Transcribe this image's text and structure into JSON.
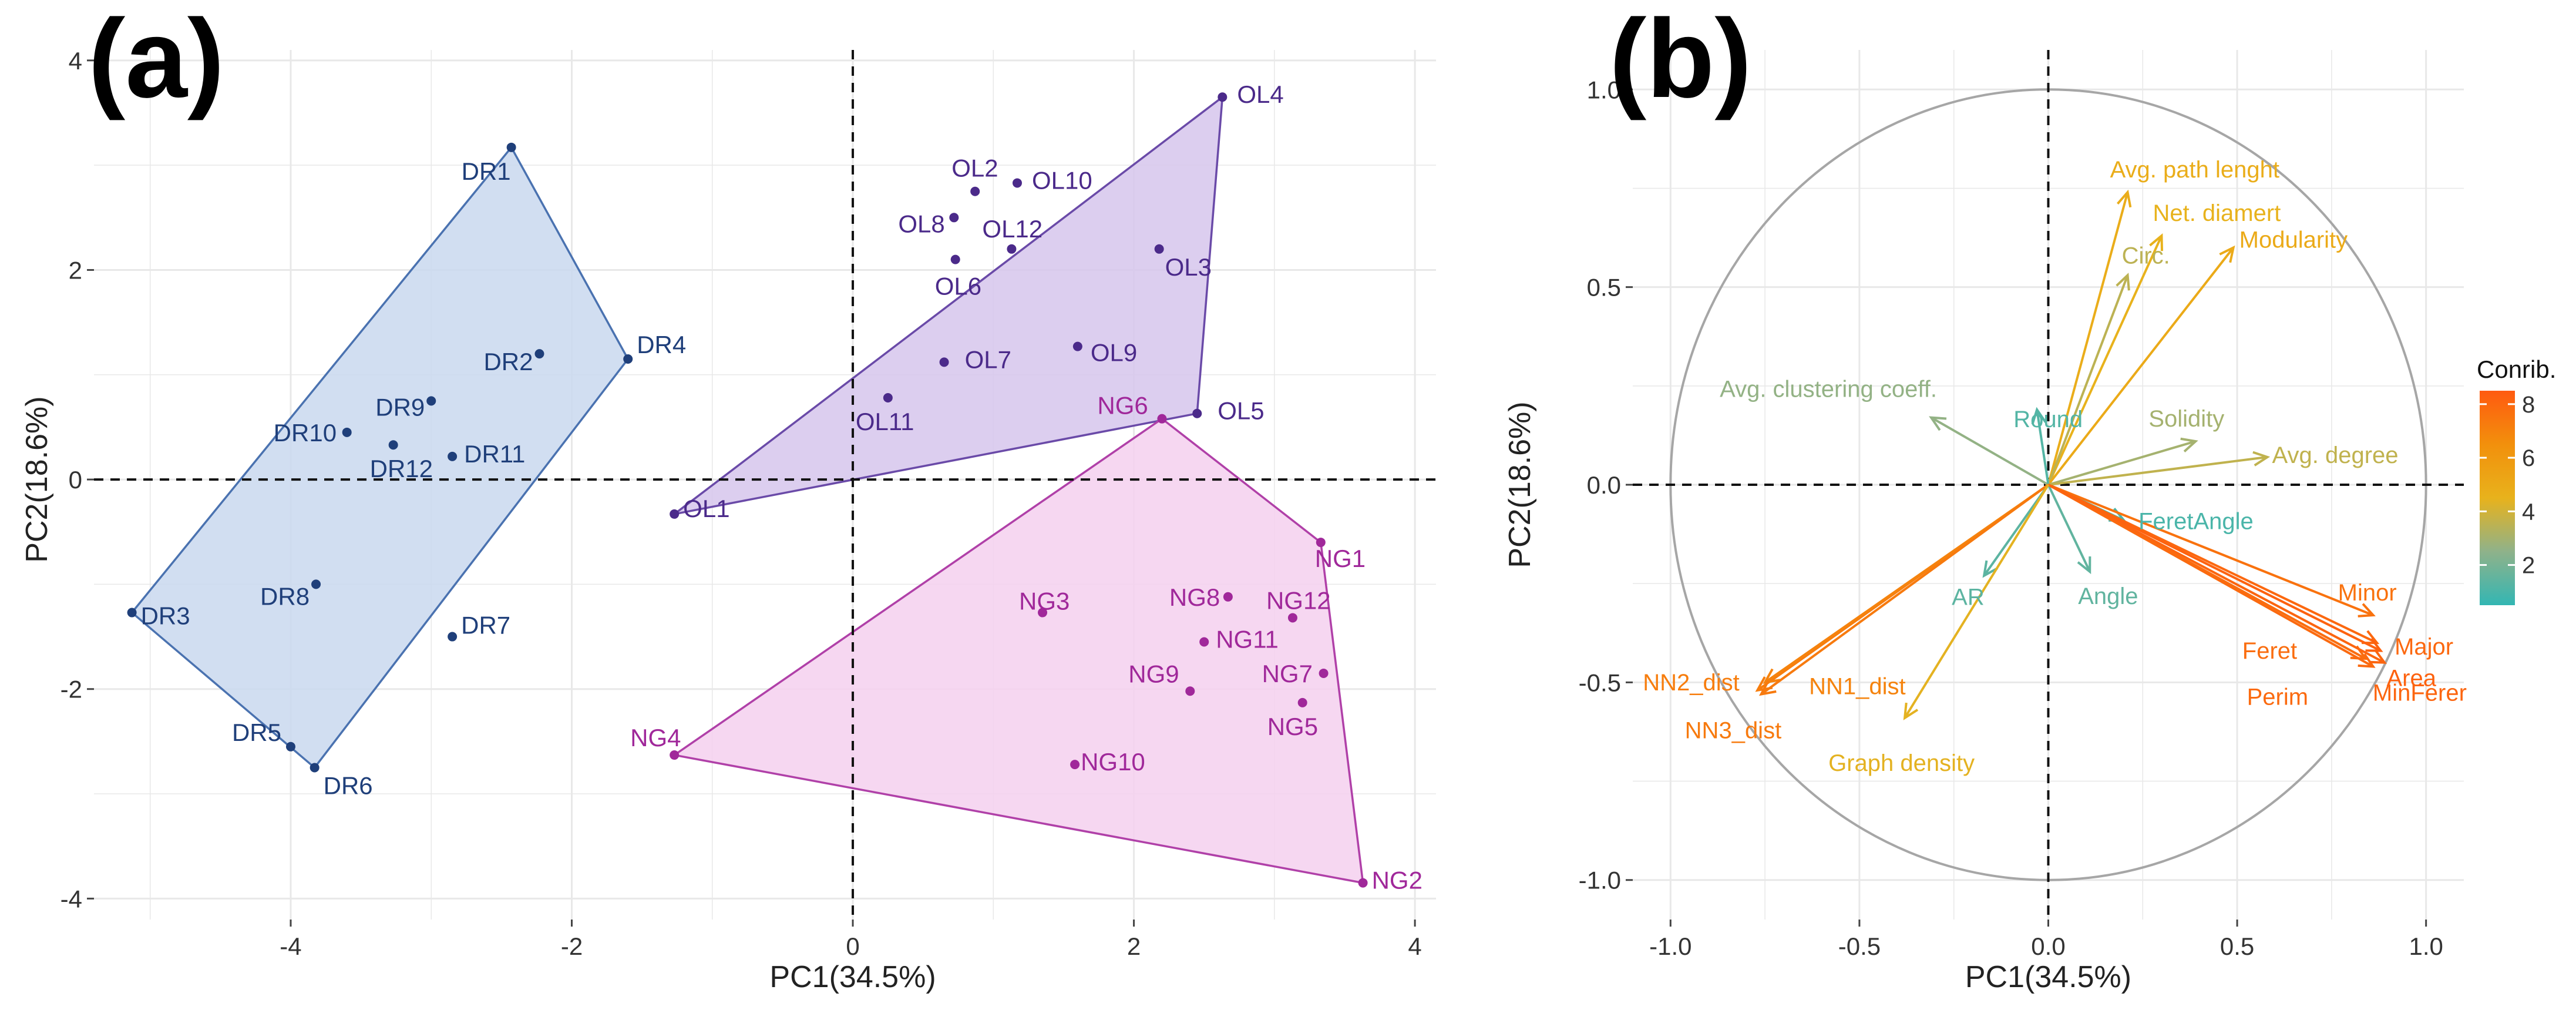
{
  "chart_data": [
    {
      "panel": "(a)",
      "type": "scatter",
      "xlabel": "PC1(34.5%)",
      "ylabel": "PC2(18.6%)",
      "xlim": [
        -5.4,
        4.15
      ],
      "ylim": [
        -4.2,
        4.1
      ],
      "x_ticks": [
        -4,
        -2,
        0,
        2,
        4
      ],
      "y_ticks": [
        -4,
        -2,
        0,
        2,
        4
      ],
      "grid": true,
      "reference_lines": {
        "x": 0,
        "y": 0,
        "style": "dashed"
      },
      "series": [
        {
          "name": "DR",
          "color": "#1f3f7a",
          "hull_fill": "#c9d8ee",
          "hull_stroke": "#4a72b0",
          "hull": [
            "DR1",
            "DR4",
            "DR6",
            "DR3"
          ],
          "points": [
            {
              "label": "DR1",
              "x": -2.43,
              "y": 3.17
            },
            {
              "label": "DR2",
              "x": -2.23,
              "y": 1.2
            },
            {
              "label": "DR3",
              "x": -5.13,
              "y": -1.27
            },
            {
              "label": "DR4",
              "x": -1.6,
              "y": 1.15
            },
            {
              "label": "DR5",
              "x": -4.0,
              "y": -2.55
            },
            {
              "label": "DR6",
              "x": -3.83,
              "y": -2.75
            },
            {
              "label": "DR7",
              "x": -2.85,
              "y": -1.5
            },
            {
              "label": "DR8",
              "x": -3.82,
              "y": -1.0
            },
            {
              "label": "DR9",
              "x": -3.0,
              "y": 0.75
            },
            {
              "label": "DR10",
              "x": -3.6,
              "y": 0.45
            },
            {
              "label": "DR11",
              "x": -2.85,
              "y": 0.22
            },
            {
              "label": "DR12",
              "x": -3.27,
              "y": 0.33
            }
          ]
        },
        {
          "name": "OL",
          "color": "#4b2a8a",
          "hull_fill": "#d6c6ec",
          "hull_stroke": "#6a4aa8",
          "hull": [
            "OL4",
            "OL5",
            "OL1"
          ],
          "points": [
            {
              "label": "OL1",
              "x": -1.27,
              "y": -0.33
            },
            {
              "label": "OL2",
              "x": 0.87,
              "y": 2.75
            },
            {
              "label": "OL3",
              "x": 2.18,
              "y": 2.2
            },
            {
              "label": "OL4",
              "x": 2.63,
              "y": 3.65
            },
            {
              "label": "OL5",
              "x": 2.45,
              "y": 0.63
            },
            {
              "label": "OL6",
              "x": 0.73,
              "y": 2.1
            },
            {
              "label": "OL7",
              "x": 0.65,
              "y": 1.12
            },
            {
              "label": "OL8",
              "x": 0.72,
              "y": 2.5
            },
            {
              "label": "OL9",
              "x": 1.6,
              "y": 1.27
            },
            {
              "label": "OL10",
              "x": 1.17,
              "y": 2.83
            },
            {
              "label": "OL11",
              "x": 0.25,
              "y": 0.78
            },
            {
              "label": "OL12",
              "x": 1.13,
              "y": 2.2
            }
          ]
        },
        {
          "name": "NG",
          "color": "#a0289a",
          "hull_fill": "#f4d0ef",
          "hull_stroke": "#b040a8",
          "hull": [
            "NG6",
            "NG1",
            "NG2",
            "NG4"
          ],
          "points": [
            {
              "label": "NG1",
              "x": 3.33,
              "y": -0.6
            },
            {
              "label": "NG2",
              "x": 3.63,
              "y": -3.85
            },
            {
              "label": "NG3",
              "x": 1.35,
              "y": -1.27
            },
            {
              "label": "NG4",
              "x": -1.27,
              "y": -2.63
            },
            {
              "label": "NG5",
              "x": 3.2,
              "y": -2.13
            },
            {
              "label": "NG6",
              "x": 2.2,
              "y": 0.58
            },
            {
              "label": "NG7",
              "x": 3.35,
              "y": -1.85
            },
            {
              "label": "NG8",
              "x": 2.67,
              "y": -1.12
            },
            {
              "label": "NG9",
              "x": 2.4,
              "y": -2.02
            },
            {
              "label": "NG10",
              "x": 1.58,
              "y": -2.72
            },
            {
              "label": "NG11",
              "x": 2.5,
              "y": -1.55
            },
            {
              "label": "NG12",
              "x": 3.13,
              "y": -1.32
            }
          ]
        }
      ]
    },
    {
      "panel": "(b)",
      "type": "biplot",
      "xlabel": "PC1(34.5%)",
      "ylabel": "PC2(18.6%)",
      "xlim": [
        -1.1,
        1.1
      ],
      "ylim": [
        -1.1,
        1.1
      ],
      "x_ticks": [
        -1.0,
        -0.5,
        0.0,
        0.5,
        1.0
      ],
      "x_tick_labels": [
        "-1.0",
        "-0.5",
        "0.0",
        "0.5",
        "1.0"
      ],
      "y_ticks": [
        -1.0,
        -0.5,
        0.0,
        0.5,
        1.0
      ],
      "y_tick_labels": [
        "-1.0",
        "-0.5",
        "0.0",
        "0.5",
        "1.0"
      ],
      "grid": true,
      "reference_lines": {
        "x": 0,
        "y": 0,
        "style": "dashed"
      },
      "unit_circle": true,
      "legend": {
        "title": "Conrib.",
        "ticks": [
          2,
          4,
          6,
          8
        ],
        "range": [
          0.5,
          8.5
        ],
        "placement": "right"
      },
      "colorscale": [
        "#33b6b3",
        "#8fb28a",
        "#e8b21c",
        "#f2900c",
        "#ff5a10"
      ],
      "variables": [
        {
          "label": "Avg. path lenght",
          "x": 0.21,
          "y": 0.74,
          "contrib": 4.8
        },
        {
          "label": "Net. diamert",
          "x": 0.3,
          "y": 0.63,
          "contrib": 4.5
        },
        {
          "label": "Circ.",
          "x": 0.21,
          "y": 0.53,
          "contrib": 3.5
        },
        {
          "label": "Modularity",
          "x": 0.49,
          "y": 0.6,
          "contrib": 5.0
        },
        {
          "label": "Avg. clustering coeff.",
          "x": -0.31,
          "y": 0.17,
          "contrib": 2.6
        },
        {
          "label": "Round",
          "x": -0.03,
          "y": 0.19,
          "contrib": 1.2
        },
        {
          "label": "Solidity",
          "x": 0.39,
          "y": 0.11,
          "contrib": 3.0
        },
        {
          "label": "Avg. degree",
          "x": 0.58,
          "y": 0.07,
          "contrib": 3.6
        },
        {
          "label": "FeretAngle",
          "x": 0.2,
          "y": -0.09,
          "contrib": 1.0
        },
        {
          "label": "AR",
          "x": -0.17,
          "y": -0.23,
          "contrib": 1.4
        },
        {
          "label": "Angle",
          "x": 0.11,
          "y": -0.22,
          "contrib": 1.5
        },
        {
          "label": "Minor",
          "x": 0.86,
          "y": -0.33,
          "contrib": 7.6
        },
        {
          "label": "Major",
          "x": 0.87,
          "y": -0.4,
          "contrib": 8.0
        },
        {
          "label": "Area",
          "x": 0.88,
          "y": -0.42,
          "contrib": 8.2
        },
        {
          "label": "Feret",
          "x": 0.84,
          "y": -0.44,
          "contrib": 7.8
        },
        {
          "label": "Perim",
          "x": 0.86,
          "y": -0.46,
          "contrib": 7.9
        },
        {
          "label": "MinFerer",
          "x": 0.89,
          "y": -0.45,
          "contrib": 8.1
        },
        {
          "label": "NN2_dist",
          "x": -0.77,
          "y": -0.52,
          "contrib": 7.2
        },
        {
          "label": "NN1_dist",
          "x": -0.75,
          "y": -0.5,
          "contrib": 7.0
        },
        {
          "label": "NN3_dist",
          "x": -0.76,
          "y": -0.53,
          "contrib": 7.3
        },
        {
          "label": "Graph density",
          "x": -0.38,
          "y": -0.59,
          "contrib": 4.4
        }
      ]
    }
  ]
}
